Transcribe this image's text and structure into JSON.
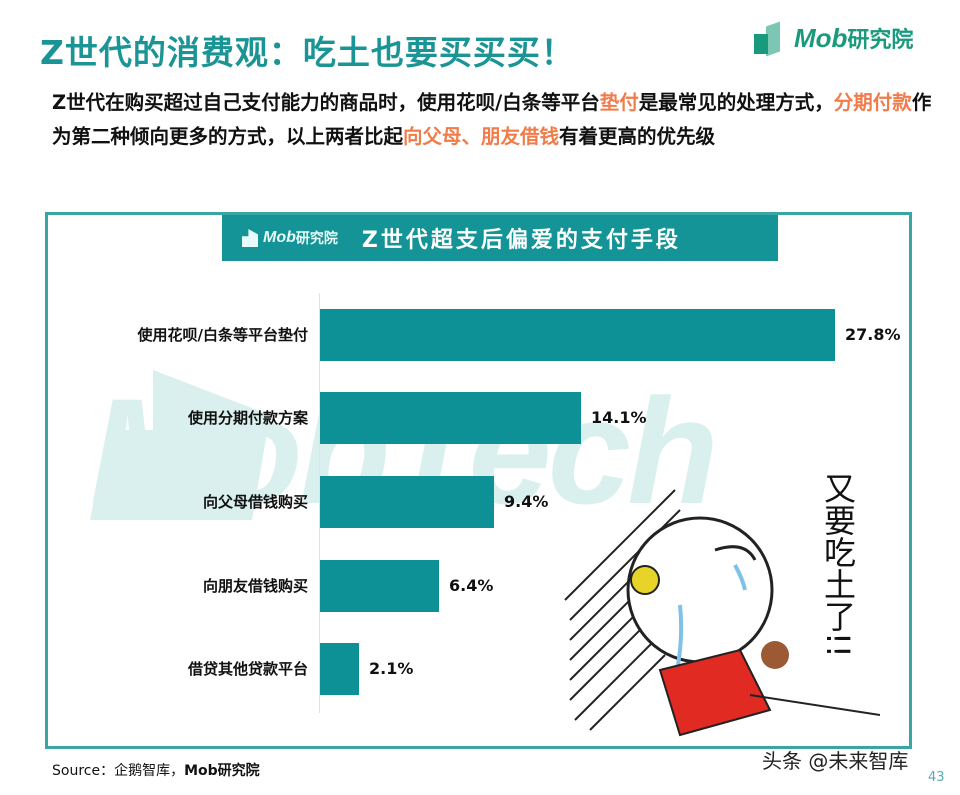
{
  "page": {
    "title": "Z世代的消费观：吃土也要买买买！",
    "logo": {
      "latin": "Mob",
      "cn": "研究院"
    },
    "subtitle": {
      "parts": [
        {
          "text": "Z世代在购买超过自己支付能力的商品时，使用花呗/白条等平台",
          "highlight": false
        },
        {
          "text": "垫付",
          "highlight": true
        },
        {
          "text": "是最常见的处理方式，",
          "highlight": false
        },
        {
          "text": "分期付款",
          "highlight": true
        },
        {
          "text": "作为第二种倾向更多的方式，以上两者比起",
          "highlight": false
        },
        {
          "text": "向父母、朋友借钱",
          "highlight": true
        },
        {
          "text": "有着更高的优先级",
          "highlight": false
        }
      ]
    },
    "chart_header": {
      "logo_latin": "Mob",
      "logo_cn": "研究院",
      "title": "Z世代超支后偏爱的支付手段"
    },
    "watermark": "MobTech",
    "cartoon_caption": "又要吃土了!!",
    "source": {
      "label": "Source：企鹅智库，",
      "bold": "Mob研究院"
    },
    "credit": "头条 @未来智库",
    "page_number": "43"
  },
  "colors": {
    "title": "#1a9494",
    "bar": "#0e9196",
    "highlight": "#f07c4a",
    "frame": "#3aa5a5",
    "header_bg": "#149496"
  },
  "chart_data": {
    "type": "bar",
    "orientation": "horizontal",
    "title": "Z世代超支后偏爱的支付手段",
    "categories": [
      "使用花呗/白条等平台垫付",
      "使用分期付款方案",
      "向父母借钱购买",
      "向朋友借钱购买",
      "借贷其他贷款平台"
    ],
    "values": [
      27.8,
      14.1,
      9.4,
      6.4,
      2.1
    ],
    "labels": [
      "27.8%",
      "14.1%",
      "9.4%",
      "6.4%",
      "2.1%"
    ],
    "unit": "%",
    "xlabel": "",
    "ylabel": "",
    "xlim": [
      0,
      28
    ],
    "grid": false,
    "legend": null
  }
}
